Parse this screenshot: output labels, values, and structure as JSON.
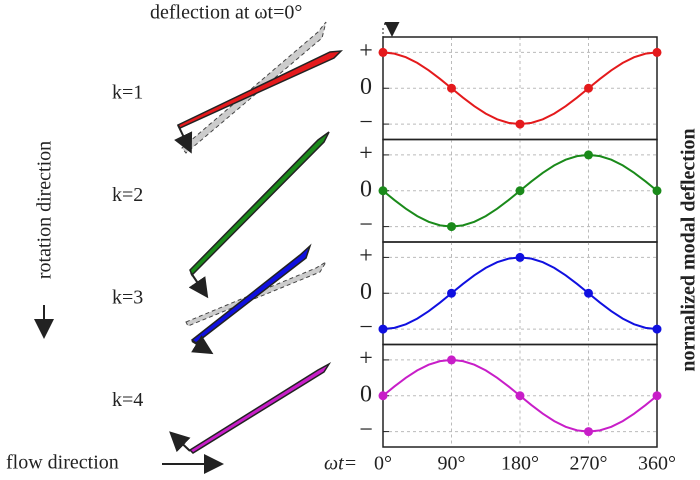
{
  "figure": {
    "deflection_label": "deflection at ωt=0°",
    "rotation_label": "rotation direction",
    "flow_label": "flow direction",
    "y_axis_label": "normalized modal deflection",
    "x_axis_label": "ωt="
  },
  "chart_data": [
    {
      "type": "line",
      "label": "k=1",
      "color": "#e41a1c",
      "x": [
        0,
        15,
        30,
        45,
        60,
        75,
        90,
        105,
        120,
        135,
        150,
        165,
        180,
        195,
        210,
        225,
        240,
        255,
        270,
        285,
        300,
        315,
        330,
        345,
        360
      ],
      "values": [
        1,
        0.966,
        0.866,
        0.707,
        0.5,
        0.259,
        0,
        -0.259,
        -0.5,
        -0.707,
        -0.866,
        -0.966,
        -1,
        -0.966,
        -0.866,
        -0.707,
        -0.5,
        -0.259,
        0,
        0.259,
        0.5,
        0.707,
        0.866,
        0.966,
        1
      ],
      "xlim": [
        0,
        360
      ],
      "xticks": [
        0,
        90,
        180,
        270,
        360
      ],
      "ylim": [
        -1.43,
        1.43
      ],
      "yticks": [
        {
          "value": 1,
          "label": "+"
        },
        0,
        {
          "value": -1,
          "label": "−"
        }
      ],
      "grid": true
    },
    {
      "type": "line",
      "label": "k=2",
      "color": "#1a8a1a",
      "x": [
        0,
        15,
        30,
        45,
        60,
        75,
        90,
        105,
        120,
        135,
        150,
        165,
        180,
        195,
        210,
        225,
        240,
        255,
        270,
        285,
        300,
        315,
        330,
        345,
        360
      ],
      "values": [
        0,
        -0.259,
        -0.5,
        -0.707,
        -0.866,
        -0.966,
        -1,
        -0.966,
        -0.866,
        -0.707,
        -0.5,
        -0.259,
        0,
        0.259,
        0.5,
        0.707,
        0.866,
        0.966,
        1,
        0.966,
        0.866,
        0.707,
        0.5,
        0.259,
        0
      ],
      "xlim": [
        0,
        360
      ],
      "xticks": [
        0,
        90,
        180,
        270,
        360
      ],
      "ylim": [
        -1.43,
        1.43
      ],
      "yticks": [
        {
          "value": 1,
          "label": "+"
        },
        0,
        {
          "value": -1,
          "label": "−"
        }
      ],
      "grid": true
    },
    {
      "type": "line",
      "label": "k=3",
      "color": "#1010e0",
      "x": [
        0,
        15,
        30,
        45,
        60,
        75,
        90,
        105,
        120,
        135,
        150,
        165,
        180,
        195,
        210,
        225,
        240,
        255,
        270,
        285,
        300,
        315,
        330,
        345,
        360
      ],
      "values": [
        -1,
        -0.966,
        -0.866,
        -0.707,
        -0.5,
        -0.259,
        0,
        0.259,
        0.5,
        0.707,
        0.866,
        0.966,
        1,
        0.966,
        0.866,
        0.707,
        0.5,
        0.259,
        0,
        -0.259,
        -0.5,
        -0.707,
        -0.866,
        -0.966,
        -1
      ],
      "xlim": [
        0,
        360
      ],
      "xticks": [
        0,
        90,
        180,
        270,
        360
      ],
      "ylim": [
        -1.43,
        1.43
      ],
      "yticks": [
        {
          "value": 1,
          "label": "+"
        },
        0,
        {
          "value": -1,
          "label": "−"
        }
      ],
      "grid": true
    },
    {
      "type": "line",
      "label": "k=4",
      "color": "#c81ec8",
      "x": [
        0,
        15,
        30,
        45,
        60,
        75,
        90,
        105,
        120,
        135,
        150,
        165,
        180,
        195,
        210,
        225,
        240,
        255,
        270,
        285,
        300,
        315,
        330,
        345,
        360
      ],
      "values": [
        0,
        0.259,
        0.5,
        0.707,
        0.866,
        0.966,
        1,
        0.966,
        0.866,
        0.707,
        0.5,
        0.259,
        0,
        -0.259,
        -0.5,
        -0.707,
        -0.866,
        -0.966,
        -1,
        -0.966,
        -0.866,
        -0.707,
        -0.5,
        -0.259,
        0
      ],
      "xlim": [
        0,
        360
      ],
      "xticks": [
        {
          "value": 0,
          "label": "0°"
        },
        {
          "value": 90,
          "label": "90°"
        },
        {
          "value": 180,
          "label": "180°"
        },
        {
          "value": 270,
          "label": "270°"
        },
        {
          "value": 360,
          "label": "360°"
        }
      ],
      "ylim": [
        -1.43,
        1.43
      ],
      "yticks": [
        {
          "value": 1,
          "label": "+"
        },
        0,
        {
          "value": -1,
          "label": "−"
        }
      ],
      "grid": true
    }
  ]
}
